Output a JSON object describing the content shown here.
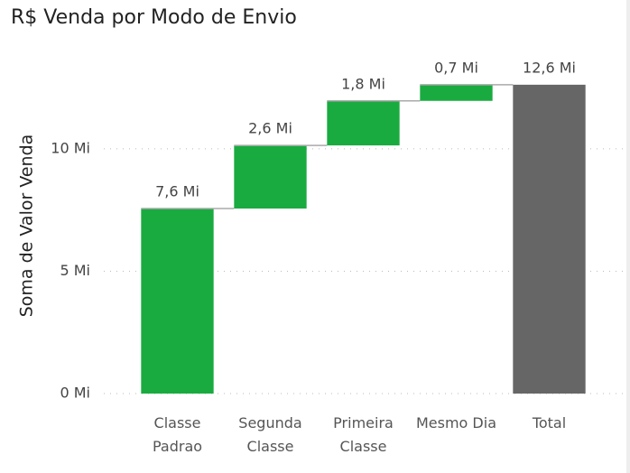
{
  "chart_data": {
    "type": "waterfall",
    "title": "R$ Venda por Modo de Envio",
    "y_label": "Soma de Valor Venda",
    "categories": [
      "Classe Padrao",
      "Segunda Classe",
      "Primeira Classe",
      "Mesmo Dia"
    ],
    "values": [
      7.56,
      2.58,
      1.82,
      0.66
    ],
    "value_labels": [
      "7,6 Mi",
      "2,6 Mi",
      "1,8 Mi",
      "0,7 Mi"
    ],
    "color": "#1aab40",
    "total": {
      "category": "Total",
      "value": 12.62,
      "value_label": "12,6 Mi",
      "color": "#666666"
    },
    "ylim": [
      0,
      13.5
    ],
    "yticks": [
      {
        "value": 0,
        "label": "0 Mi"
      },
      {
        "value": 5,
        "label": "5 Mi"
      },
      {
        "value": 10,
        "label": "10 Mi"
      }
    ],
    "grid": true
  }
}
